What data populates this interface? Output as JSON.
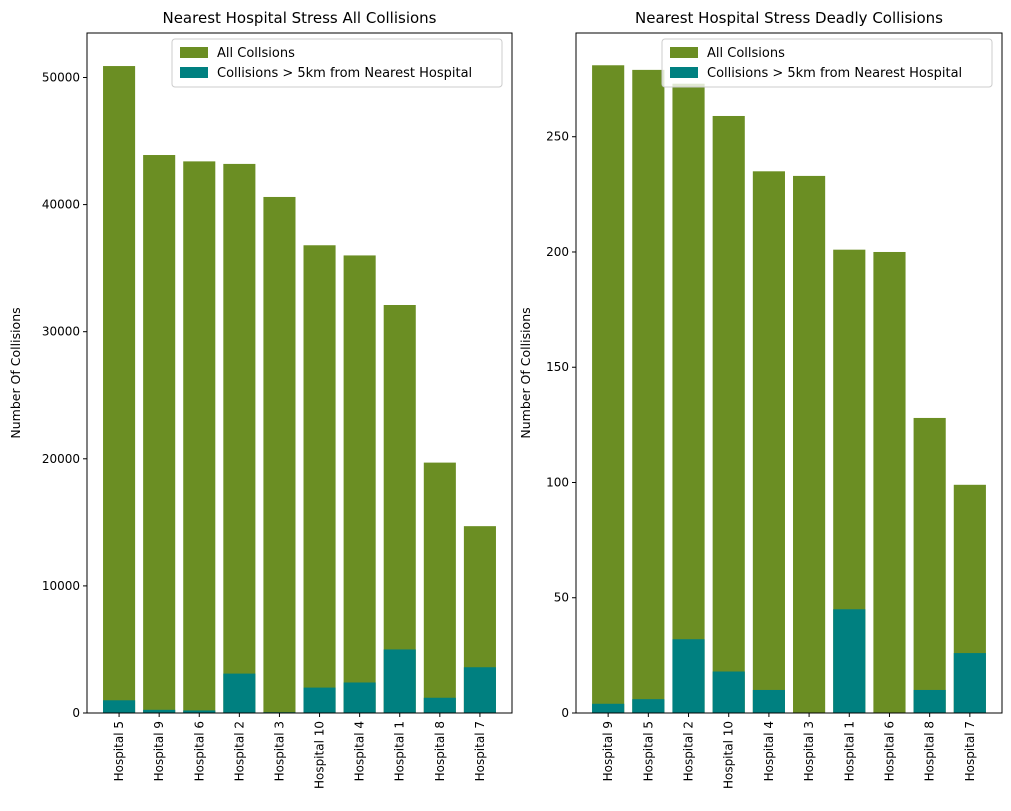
{
  "colors": {
    "all": "#6b8e23",
    "far": "#008080",
    "axis": "#000000"
  },
  "chart_data": [
    {
      "type": "bar",
      "title": "Nearest Hospital Stress All Collisions",
      "ylabel": "Number Of Collisions",
      "xlabel": "",
      "ylim": [
        0,
        53500
      ],
      "yticks": [
        0,
        10000,
        20000,
        30000,
        40000,
        50000
      ],
      "categories": [
        "Hospital 5",
        "Hospital 9",
        "Hospital 6",
        "Hospital 2",
        "Hospital 3",
        "Hospital 10",
        "Hospital 4",
        "Hospital 1",
        "Hospital 8",
        "Hospital 7"
      ],
      "series": [
        {
          "name": "All Collsions",
          "values": [
            50900,
            43900,
            43400,
            43200,
            40600,
            36800,
            36000,
            32100,
            19700,
            14700
          ]
        },
        {
          "name": "Collisions > 5km from Nearest Hospital",
          "values": [
            1000,
            250,
            200,
            3100,
            60,
            2000,
            2400,
            5000,
            1200,
            3600
          ]
        }
      ],
      "legend": "top-right",
      "grid": false
    },
    {
      "type": "bar",
      "title": "Nearest Hospital Stress Deadly Collisions",
      "ylabel": "Number Of Collisions",
      "xlabel": "",
      "ylim": [
        0,
        295
      ],
      "yticks": [
        0,
        50,
        100,
        150,
        200,
        250
      ],
      "categories": [
        "Hospital 9",
        "Hospital 5",
        "Hospital 2",
        "Hospital 10",
        "Hospital 4",
        "Hospital 3",
        "Hospital 1",
        "Hospital 6",
        "Hospital 8",
        "Hospital 7"
      ],
      "series": [
        {
          "name": "All Collsions",
          "values": [
            281,
            279,
            273,
            259,
            235,
            233,
            201,
            200,
            128,
            99
          ]
        },
        {
          "name": "Collisions > 5km from Nearest Hospital",
          "values": [
            4,
            6,
            32,
            18,
            10,
            0,
            45,
            0,
            10,
            26
          ]
        }
      ],
      "legend": "top-right",
      "grid": false
    }
  ]
}
